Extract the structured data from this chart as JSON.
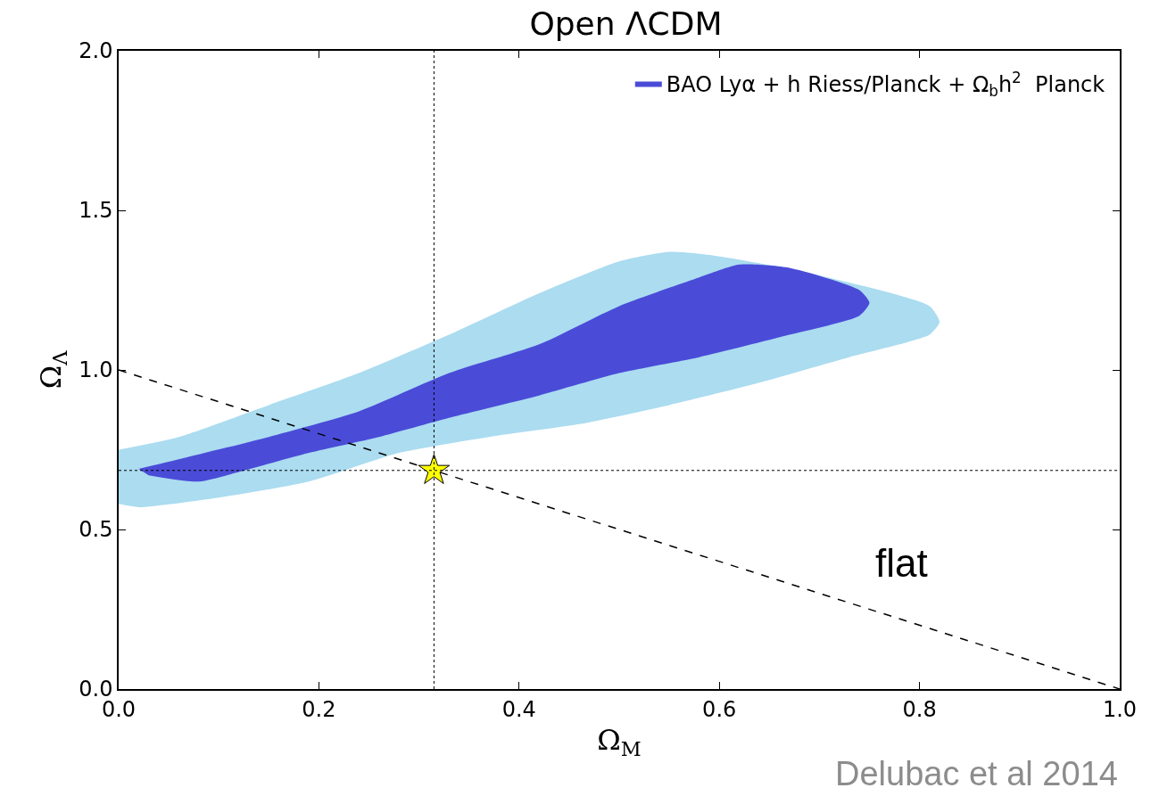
{
  "chart_data": {
    "type": "area",
    "title": "Open ΛCDM",
    "xlabel": "Ω$_{M}$",
    "ylabel": "Ω$_{Λ}$",
    "xlim": [
      0,
      1
    ],
    "ylim": [
      0,
      2
    ],
    "xticks": [
      {
        "value": 0,
        "label": "0.0"
      },
      {
        "value": 0.2,
        "label": "0.2"
      },
      {
        "value": 0.4,
        "label": "0.4"
      },
      {
        "value": 0.6,
        "label": "0.6"
      },
      {
        "value": 0.8,
        "label": "0.8"
      },
      {
        "value": 1,
        "label": "1.0"
      }
    ],
    "yticks": [
      {
        "value": 0,
        "label": "0.0"
      },
      {
        "value": 0.5,
        "label": "0.5"
      },
      {
        "value": 1,
        "label": "1.0"
      },
      {
        "value": 1.5,
        "label": "1.5"
      },
      {
        "value": 2,
        "label": "2.0"
      }
    ],
    "legend": "top right",
    "series": [
      {
        "color": "#abdcf0",
        "x": [
          0,
          0.06,
          0.15,
          0.24,
          0.33,
          0.42,
          0.5,
          0.55,
          0.59,
          0.68,
          0.81,
          0.82,
          0.81,
          0.78,
          0.73,
          0.64,
          0.55,
          0.46,
          0.37,
          0.28,
          0.19,
          0.1,
          0.02,
          0
        ],
        "values": [
          0.75,
          0.79,
          0.89,
          0.99,
          1.11,
          1.24,
          1.34,
          1.37,
          1.36,
          1.31,
          1.2,
          1.15,
          1.11,
          1.08,
          1.04,
          0.96,
          0.89,
          0.83,
          0.79,
          0.74,
          0.65,
          0.6,
          0.57,
          0.58
        ]
      },
      {
        "name": "BAO Lyα + h Riess/Planck + Ω$_{b}$h$^{2}$  Planck",
        "color": "#4a4cd8",
        "x": [
          0.02,
          0.06,
          0.15,
          0.24,
          0.33,
          0.42,
          0.5,
          0.58,
          0.62,
          0.67,
          0.74,
          0.75,
          0.74,
          0.67,
          0.58,
          0.5,
          0.42,
          0.33,
          0.26,
          0.19,
          0.12,
          0.08,
          0.03
        ],
        "values": [
          0.69,
          0.72,
          0.79,
          0.87,
          0.99,
          1.08,
          1.2,
          1.29,
          1.33,
          1.32,
          1.25,
          1.21,
          1.17,
          1.11,
          1.04,
          0.99,
          0.92,
          0.85,
          0.79,
          0.74,
          0.68,
          0.65,
          0.67
        ]
      },
      {
        "type": "line",
        "color": "#000000",
        "line_style": "dashed",
        "x": [
          0,
          1
        ],
        "values": [
          1,
          0
        ]
      },
      {
        "type": "scatter",
        "color": "#ffff00",
        "marker": "star",
        "x": [
          0.315
        ],
        "values": [
          0.685
        ]
      }
    ],
    "ref_lines": [
      {
        "axis": "x",
        "value": 0.315,
        "line_style": "dotted",
        "color": "#000000"
      },
      {
        "axis": "y",
        "value": 0.685,
        "line_style": "dotted",
        "color": "#000000"
      }
    ],
    "annotations": [
      "flat",
      "Delubac et al 2014"
    ]
  }
}
